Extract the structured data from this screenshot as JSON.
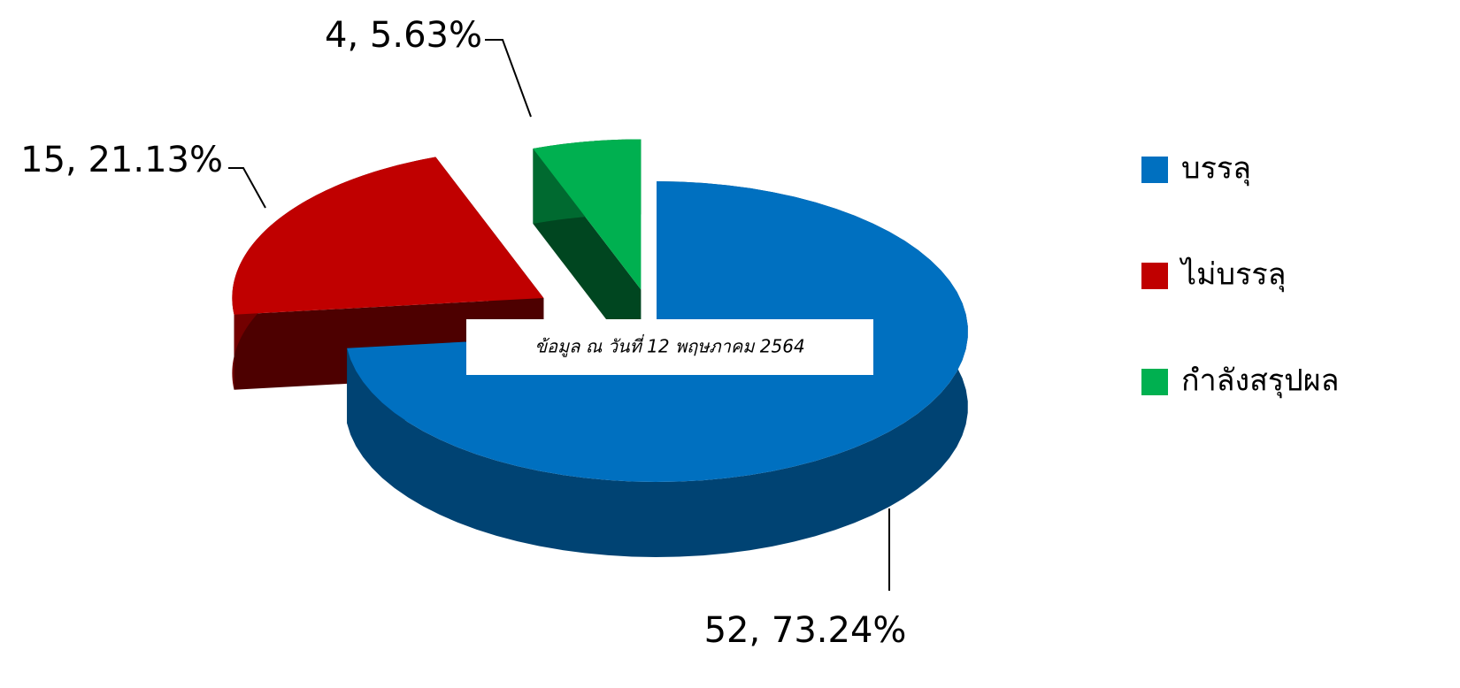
{
  "chart_data": {
    "type": "pie3d",
    "categories": [
      "บรรลุ",
      "ไม่บรรลุ",
      "กำลังสรุปผล"
    ],
    "values": [
      52,
      15,
      4
    ],
    "value_labels": [
      "52, 73.24%",
      "15, 21.13%",
      "4, 5.63%"
    ],
    "colors": [
      "#0070c0",
      "#c00000",
      "#00b050"
    ],
    "legend": "right",
    "annotation": "ข้อมูล ณ  วันที่ 12 พฤษภาคม 2564"
  }
}
